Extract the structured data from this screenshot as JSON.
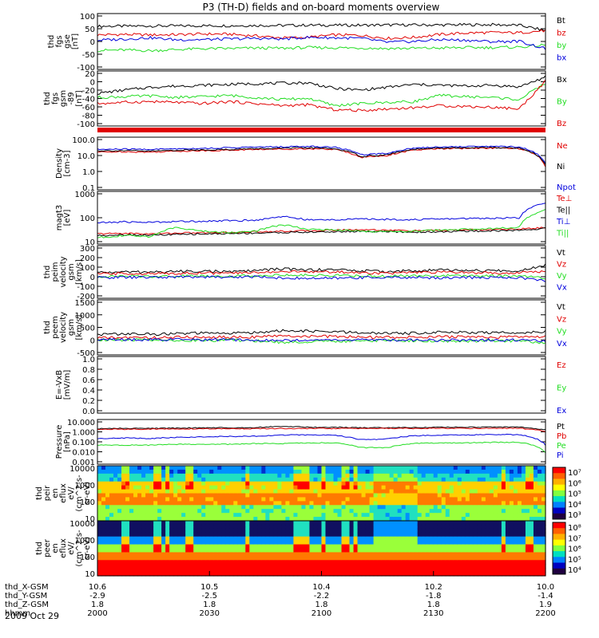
{
  "title": "P3 (TH-D) fields and on-board moments overview",
  "date_label": "2009 Oct 29",
  "colors": {
    "black": "#000000",
    "red": "#e00000",
    "green": "#22dd22",
    "blue": "#0000dd"
  },
  "chart_data": [
    {
      "type": "line",
      "panel": "fgs_gse",
      "ylabel": [
        "thd",
        "fgs",
        "gse",
        "[nT]"
      ],
      "ticks": [
        "100",
        "50",
        "0",
        "-50",
        "-100"
      ],
      "ylim": [
        -120,
        110
      ],
      "series": [
        {
          "name": "Bt",
          "color": "black",
          "values": [
            58,
            58,
            59,
            59,
            60,
            60,
            61,
            61,
            62,
            62,
            62,
            63,
            63,
            63,
            64,
            64,
            62,
            40
          ]
        },
        {
          "name": "bz",
          "color": "red",
          "values": [
            22,
            24,
            22,
            23,
            26,
            25,
            18,
            10,
            12,
            22,
            20,
            8,
            12,
            24,
            30,
            32,
            31,
            40
          ]
        },
        {
          "name": "by",
          "color": "green",
          "values": [
            -42,
            -40,
            -43,
            -38,
            -35,
            -34,
            -32,
            -33,
            -30,
            -31,
            -32,
            -34,
            -33,
            -32,
            -30,
            -30,
            -28,
            -20
          ]
        },
        {
          "name": "bx",
          "color": "blue",
          "values": [
            0,
            5,
            10,
            2,
            3,
            5,
            8,
            5,
            12,
            10,
            8,
            -8,
            -5,
            3,
            0,
            -6,
            -4,
            -35
          ]
        }
      ]
    },
    {
      "type": "line",
      "panel": "fgs_gsm",
      "ylabel": [
        "thd",
        "fgs",
        "gsm",
        "-89",
        "[nT]"
      ],
      "ticks": [
        "20",
        "0",
        "-20",
        "-40",
        "-60",
        "-80",
        "-100"
      ],
      "ylim": [
        -110,
        25
      ],
      "series": [
        {
          "name": "Bx",
          "color": "black",
          "values": [
            -30,
            -22,
            -15,
            -12,
            -10,
            -8,
            -6,
            -5,
            -4,
            -18,
            -22,
            -15,
            -8,
            -10,
            -12,
            -10,
            -14,
            10
          ]
        },
        {
          "name": "By",
          "color": "green",
          "values": [
            -40,
            -38,
            -36,
            -40,
            -38,
            -35,
            -40,
            -45,
            -42,
            -60,
            -55,
            -52,
            -50,
            -35,
            -38,
            -40,
            -45,
            -5
          ]
        },
        {
          "name": "Bz",
          "color": "red",
          "values": [
            -55,
            -52,
            -50,
            -52,
            -55,
            -50,
            -55,
            -60,
            -58,
            -70,
            -72,
            -68,
            -65,
            -60,
            -62,
            -64,
            -68,
            0
          ]
        }
      ]
    },
    {
      "type": "line",
      "panel": "density",
      "log": true,
      "ylabel": [
        "Density",
        "[cm-3]"
      ],
      "ticks": [
        "100.0",
        "10.0",
        "1.0",
        "0.1"
      ],
      "ylim": [
        0.1,
        100
      ],
      "series": [
        {
          "name": "Ne",
          "color": "red",
          "values": [
            14,
            15,
            14,
            16,
            17,
            18,
            20,
            21,
            22,
            20,
            7,
            9,
            18,
            22,
            23,
            24,
            22,
            2
          ]
        },
        {
          "name": "Ni",
          "color": "black",
          "values": [
            17,
            17,
            16,
            18,
            19,
            20,
            22,
            23,
            25,
            22,
            8,
            10,
            20,
            24,
            25,
            26,
            24,
            2.5
          ]
        },
        {
          "name": "Npot",
          "color": "blue",
          "values": [
            20,
            21,
            20,
            22,
            23,
            25,
            27,
            28,
            30,
            27,
            10,
            12,
            24,
            28,
            29,
            30,
            28,
            3
          ]
        }
      ]
    },
    {
      "type": "line",
      "panel": "temperature",
      "log": true,
      "ylabel": [
        "magt3",
        "[eV]"
      ],
      "ticks": [
        "1000",
        "100",
        "10"
      ],
      "ylim": [
        10,
        3000
      ],
      "series": [
        {
          "name": "Te⊥",
          "color": "red",
          "values": [
            30,
            32,
            30,
            33,
            34,
            35,
            38,
            40,
            42,
            45,
            48,
            45,
            42,
            44,
            46,
            48,
            50,
            60
          ]
        },
        {
          "name": "Te||",
          "color": "black",
          "values": [
            25,
            28,
            26,
            28,
            30,
            31,
            33,
            35,
            36,
            38,
            40,
            38,
            36,
            38,
            40,
            42,
            44,
            55
          ]
        },
        {
          "name": "Ti⊥",
          "color": "blue",
          "values": [
            100,
            110,
            105,
            115,
            120,
            125,
            130,
            200,
            135,
            140,
            150,
            145,
            140,
            150,
            160,
            165,
            170,
            900
          ]
        },
        {
          "name": "Ti||",
          "color": "green",
          "values": [
            20,
            25,
            22,
            60,
            40,
            35,
            40,
            80,
            50,
            45,
            40,
            38,
            40,
            45,
            50,
            55,
            60,
            400
          ]
        }
      ]
    },
    {
      "type": "line",
      "panel": "peim_velocity",
      "ylabel": [
        "thd",
        "peim",
        "velocity",
        "gsm",
        "[km/s]"
      ],
      "ticks": [
        "300",
        "200",
        "100",
        "0",
        "-100",
        "-200"
      ],
      "ylim": [
        -210,
        310
      ],
      "series": [
        {
          "name": "Vt",
          "color": "black",
          "values": [
            45,
            50,
            48,
            55,
            60,
            50,
            65,
            80,
            70,
            75,
            60,
            55,
            60,
            70,
            65,
            60,
            62,
            120
          ]
        },
        {
          "name": "Vz",
          "color": "red",
          "values": [
            30,
            35,
            32,
            38,
            40,
            36,
            45,
            55,
            50,
            52,
            42,
            38,
            42,
            48,
            45,
            40,
            42,
            60
          ]
        },
        {
          "name": "Vy",
          "color": "green",
          "values": [
            5,
            8,
            6,
            10,
            12,
            8,
            15,
            20,
            18,
            16,
            10,
            8,
            10,
            14,
            12,
            10,
            11,
            -10
          ]
        },
        {
          "name": "Vx",
          "color": "blue",
          "values": [
            -5,
            -3,
            -4,
            0,
            2,
            -2,
            5,
            -10,
            -15,
            -12,
            -5,
            -3,
            -5,
            -8,
            -6,
            -4,
            -5,
            -40
          ]
        }
      ]
    },
    {
      "type": "line",
      "panel": "peem_velocity",
      "ylabel": [
        "thd",
        "peem",
        "velocity",
        "gsm",
        "[km/s]"
      ],
      "ticks": [
        "1500",
        "1000",
        "500",
        "0",
        "-500"
      ],
      "ylim": [
        -600,
        1500
      ],
      "series": [
        {
          "name": "Vt",
          "color": "black",
          "values": [
            180,
            200,
            190,
            210,
            230,
            220,
            260,
            320,
            300,
            280,
            240,
            220,
            230,
            280,
            260,
            240,
            250,
            300
          ]
        },
        {
          "name": "Vz",
          "color": "red",
          "values": [
            50,
            60,
            55,
            70,
            80,
            70,
            90,
            120,
            110,
            100,
            80,
            70,
            75,
            90,
            85,
            80,
            82,
            100
          ]
        },
        {
          "name": "Vy",
          "color": "green",
          "values": [
            -20,
            -30,
            -25,
            -40,
            -50,
            -40,
            -60,
            -120,
            -100,
            -80,
            -60,
            -50,
            -55,
            -80,
            -70,
            -60,
            -62,
            -150
          ]
        },
        {
          "name": "Vx",
          "color": "blue",
          "values": [
            -10,
            -20,
            -15,
            -20,
            -25,
            -20,
            -30,
            -50,
            -40,
            -35,
            -30,
            -25,
            -28,
            -40,
            -35,
            -30,
            -32,
            -80
          ]
        }
      ]
    },
    {
      "type": "line",
      "panel": "exb",
      "ylabel": [
        "E=-VxB",
        "[mV/m]"
      ],
      "ticks": [
        "1.0",
        "0.8",
        "0.6",
        "0.4",
        "0.2",
        "0.0"
      ],
      "ylim": [
        0,
        1
      ],
      "series": [
        {
          "name": "Ez",
          "color": "red",
          "values": []
        },
        {
          "name": "Ey",
          "color": "green",
          "values": []
        },
        {
          "name": "Ex",
          "color": "blue",
          "values": []
        }
      ]
    },
    {
      "type": "line",
      "panel": "pressure",
      "log": true,
      "ylabel": [
        "Pressure",
        "[nPa]"
      ],
      "ticks": [
        "10.000",
        "1.000",
        "0.100",
        "0.010",
        "0.001"
      ],
      "ylim": [
        0.001,
        10
      ],
      "series": [
        {
          "name": "Pt",
          "color": "black",
          "values": [
            1.5,
            1.6,
            1.6,
            1.7,
            1.8,
            1.8,
            1.9,
            2.5,
            2.0,
            2.0,
            1.8,
            1.8,
            1.9,
            2.0,
            2.0,
            2.1,
            2.1,
            1.2
          ]
        },
        {
          "name": "Pb",
          "color": "red",
          "values": [
            1.3,
            1.35,
            1.38,
            1.4,
            1.45,
            1.48,
            1.5,
            1.52,
            1.55,
            1.56,
            1.58,
            1.58,
            1.6,
            1.62,
            1.62,
            1.63,
            1.6,
            0.9
          ]
        },
        {
          "name": "Pe",
          "color": "green",
          "values": [
            0.05,
            0.05,
            0.05,
            0.06,
            0.06,
            0.06,
            0.07,
            0.07,
            0.08,
            0.08,
            0.03,
            0.03,
            0.07,
            0.08,
            0.08,
            0.09,
            0.09,
            0.01
          ]
        },
        {
          "name": "Pi",
          "color": "blue",
          "values": [
            0.2,
            0.22,
            0.2,
            0.25,
            0.28,
            0.3,
            0.32,
            0.4,
            0.42,
            0.38,
            0.15,
            0.18,
            0.35,
            0.4,
            0.42,
            0.45,
            0.44,
            0.05
          ]
        }
      ]
    },
    {
      "type": "heatmap",
      "panel": "peir_spectrogram",
      "ylabel": [
        "thd",
        "peir",
        "en",
        "eflux",
        "eV/",
        "(cm^2-s-",
        "sr-eV)"
      ],
      "ticks": [
        "10000",
        "1000",
        "100",
        "10"
      ],
      "ylim": [
        10,
        20000
      ],
      "colorbar_ticks": [
        "10⁷",
        "10⁶",
        "10⁵",
        "10⁴",
        "10³"
      ]
    },
    {
      "type": "heatmap",
      "panel": "peer_spectrogram",
      "ylabel": [
        "thd",
        "peer",
        "en",
        "eflux",
        "eV/",
        "(cm^2-s-",
        "sr-eV)"
      ],
      "ticks": [
        "10000",
        "1000",
        "100",
        "10"
      ],
      "ylim": [
        10,
        20000
      ],
      "colorbar_ticks": [
        "10⁸",
        "10⁷",
        "10⁶",
        "10⁵",
        "10⁴"
      ]
    }
  ],
  "xaxis": {
    "rows": [
      {
        "label": "thd_X-GSM",
        "values": [
          "10.6",
          "10.5",
          "10.4",
          "10.2",
          "10.0"
        ]
      },
      {
        "label": "thd_Y-GSM",
        "values": [
          "-2.9",
          "-2.5",
          "-2.2",
          "-1.8",
          "-1.4"
        ]
      },
      {
        "label": "thd_Z-GSM",
        "values": [
          "1.8",
          "1.8",
          "1.8",
          "1.8",
          "1.9"
        ]
      },
      {
        "label": "hhmm",
        "values": [
          "2000",
          "2030",
          "2100",
          "2130",
          "2200"
        ]
      }
    ]
  }
}
